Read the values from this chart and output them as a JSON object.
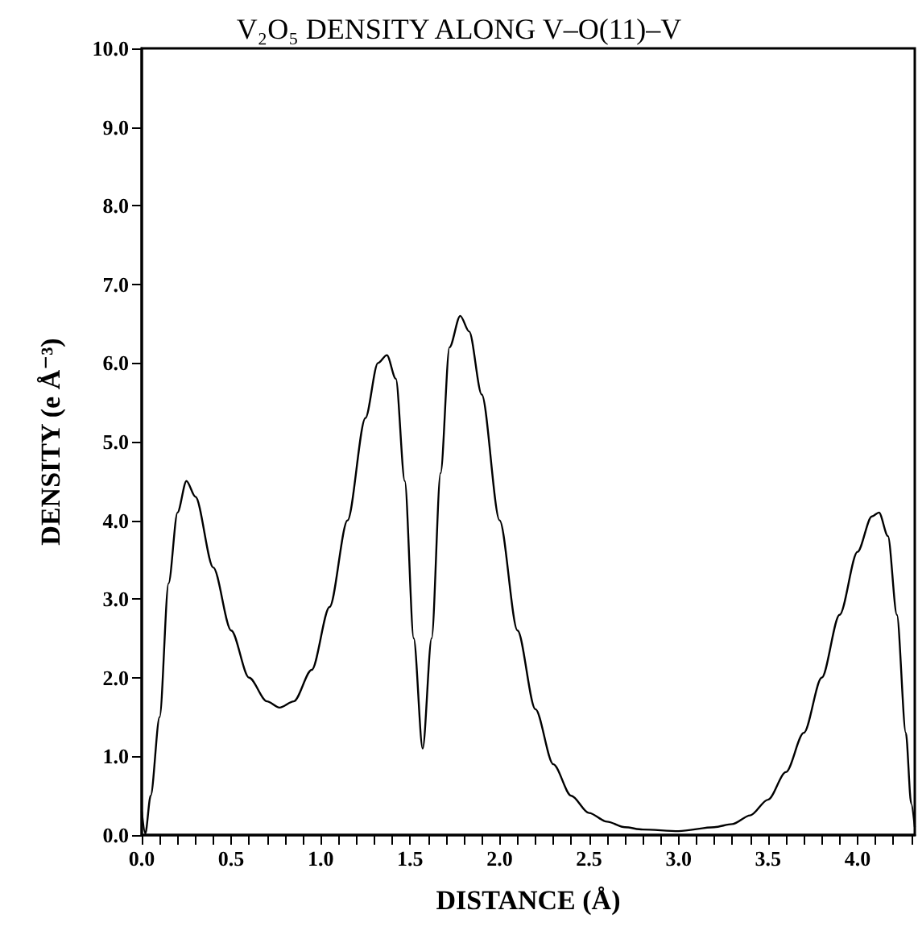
{
  "chart_data": {
    "type": "line",
    "title": "V₂O₅ DENSITY ALONG V–O(11)–V",
    "xlabel": "DISTANCE (Å)",
    "ylabel": "DENSITY (e Å⁻³)",
    "x": [
      0,
      0.02,
      0.05,
      0.1,
      0.15,
      0.2,
      0.25,
      0.3,
      0.4,
      0.5,
      0.6,
      0.7,
      0.77,
      0.85,
      0.95,
      1.05,
      1.15,
      1.25,
      1.32,
      1.37,
      1.42,
      1.47,
      1.52,
      1.57,
      1.62,
      1.67,
      1.72,
      1.78,
      1.83,
      1.9,
      2.0,
      2.1,
      2.2,
      2.3,
      2.4,
      2.5,
      2.6,
      2.7,
      2.8,
      3.0,
      3.2,
      3.3,
      3.4,
      3.5,
      3.6,
      3.7,
      3.8,
      3.9,
      4.0,
      4.08,
      4.12,
      4.17,
      4.22,
      4.27,
      4.3,
      4.32
    ],
    "series": [
      {
        "color": "#000000",
        "values": [
          0.3,
          0.02,
          0.5,
          1.5,
          3.2,
          4.1,
          4.5,
          4.3,
          3.4,
          2.6,
          2.0,
          1.7,
          1.62,
          1.7,
          2.1,
          2.9,
          4.0,
          5.3,
          6.0,
          6.1,
          5.8,
          4.5,
          2.5,
          1.1,
          2.5,
          4.6,
          6.2,
          6.6,
          6.4,
          5.6,
          4.0,
          2.6,
          1.6,
          0.9,
          0.5,
          0.28,
          0.17,
          0.1,
          0.07,
          0.05,
          0.1,
          0.14,
          0.25,
          0.45,
          0.8,
          1.3,
          2.0,
          2.8,
          3.6,
          4.05,
          4.1,
          3.8,
          2.8,
          1.3,
          0.4,
          0.1
        ]
      }
    ],
    "xlim": [
      0,
      4.32
    ],
    "xticks": [
      {
        "value": 0,
        "label": "0.0"
      },
      {
        "value": 0.1,
        "label": null
      },
      {
        "value": 0.2,
        "label": null
      },
      {
        "value": 0.3,
        "label": null
      },
      {
        "value": 0.4,
        "label": null
      },
      {
        "value": 0.5,
        "label": "0.5"
      },
      {
        "value": 0.6,
        "label": null
      },
      {
        "value": 0.7,
        "label": null
      },
      {
        "value": 0.8,
        "label": null
      },
      {
        "value": 0.9,
        "label": null
      },
      {
        "value": 1,
        "label": "1.0"
      },
      {
        "value": 1.1,
        "label": null
      },
      {
        "value": 1.2,
        "label": null
      },
      {
        "value": 1.3,
        "label": null
      },
      {
        "value": 1.4,
        "label": null
      },
      {
        "value": 1.5,
        "label": "1.5"
      },
      {
        "value": 1.6,
        "label": null
      },
      {
        "value": 1.7,
        "label": null
      },
      {
        "value": 1.8,
        "label": null
      },
      {
        "value": 1.9,
        "label": null
      },
      {
        "value": 2,
        "label": "2.0"
      },
      {
        "value": 2.1,
        "label": null
      },
      {
        "value": 2.2,
        "label": null
      },
      {
        "value": 2.3,
        "label": null
      },
      {
        "value": 2.4,
        "label": null
      },
      {
        "value": 2.5,
        "label": "2.5"
      },
      {
        "value": 2.6,
        "label": null
      },
      {
        "value": 2.7,
        "label": null
      },
      {
        "value": 2.8,
        "label": null
      },
      {
        "value": 2.9,
        "label": null
      },
      {
        "value": 3,
        "label": "3.0"
      },
      {
        "value": 3.1,
        "label": null
      },
      {
        "value": 3.2,
        "label": null
      },
      {
        "value": 3.3,
        "label": null
      },
      {
        "value": 3.4,
        "label": null
      },
      {
        "value": 3.5,
        "label": "3.5"
      },
      {
        "value": 3.6,
        "label": null
      },
      {
        "value": 3.7,
        "label": null
      },
      {
        "value": 3.8,
        "label": null
      },
      {
        "value": 3.9,
        "label": null
      },
      {
        "value": 4,
        "label": "4.0"
      },
      {
        "value": 4.1,
        "label": null
      },
      {
        "value": 4.2,
        "label": null
      },
      {
        "value": 4.3,
        "label": null
      }
    ],
    "ylim": [
      0,
      10
    ],
    "yticks": [
      {
        "value": 0,
        "label": "0.0"
      },
      {
        "value": 1,
        "label": "1.0"
      },
      {
        "value": 2,
        "label": "2.0"
      },
      {
        "value": 3,
        "label": "3.0"
      },
      {
        "value": 4,
        "label": "4.0"
      },
      {
        "value": 5,
        "label": "5.0"
      },
      {
        "value": 6,
        "label": "6.0"
      },
      {
        "value": 7,
        "label": "7.0"
      },
      {
        "value": 8,
        "label": "8.0"
      },
      {
        "value": 9,
        "label": "9.0"
      },
      {
        "value": 10,
        "label": "10.0"
      }
    ],
    "grid": false,
    "marker": "none",
    "line_style": "solid"
  }
}
